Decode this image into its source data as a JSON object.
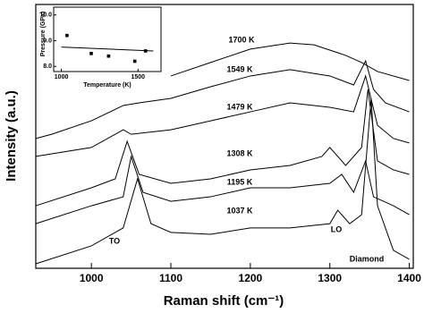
{
  "chart_data": {
    "type": "line",
    "xlabel": "Raman shift (cm⁻¹)",
    "ylabel": "Intensity (a.u.)",
    "xlim": [
      930,
      1405
    ],
    "ylim": [
      0,
      100
    ],
    "xticks": [
      1000,
      1100,
      1200,
      1300,
      1400
    ],
    "color": "#000000",
    "series": [
      {
        "name": "1700 K",
        "x": [
          1100,
          1150,
          1200,
          1250,
          1280,
          1320,
          1340,
          1360,
          1400
        ],
        "y": [
          72.9,
          78.0,
          83.1,
          85.4,
          84.7,
          80.7,
          78.0,
          74.6,
          71.2
        ]
      },
      {
        "name": "1549 K",
        "x": [
          930,
          950,
          1000,
          1040,
          1060,
          1100,
          1150,
          1200,
          1250,
          1300,
          1330,
          1345,
          1355,
          1370,
          1400
        ],
        "y": [
          49.2,
          50.8,
          55.9,
          61.7,
          62.7,
          64.4,
          68.8,
          72.9,
          75.3,
          72.9,
          69.5,
          78.6,
          67.8,
          62.7,
          59.3
        ]
      },
      {
        "name": "1479 K",
        "x": [
          930,
          1000,
          1030,
          1040,
          1050,
          1100,
          1150,
          1200,
          1250,
          1300,
          1330,
          1345,
          1360,
          1380,
          1400
        ],
        "y": [
          42.4,
          45.8,
          50.8,
          52.5,
          50.8,
          52.5,
          55.9,
          59.3,
          62.7,
          61.0,
          59.3,
          72.9,
          54.2,
          49.2,
          47.5
        ]
      },
      {
        "name": "1308 K",
        "x": [
          930,
          1000,
          1030,
          1045,
          1060,
          1100,
          1150,
          1200,
          1250,
          1290,
          1300,
          1320,
          1340,
          1348,
          1360,
          1380,
          1400
        ],
        "y": [
          23.7,
          30.5,
          33.9,
          48.1,
          35.6,
          32.2,
          33.9,
          37.3,
          39.0,
          42.4,
          45.8,
          39.0,
          45.8,
          67.8,
          40.7,
          37.3,
          35.6
        ]
      },
      {
        "name": "1195 K",
        "x": [
          930,
          1000,
          1040,
          1050,
          1065,
          1100,
          1150,
          1200,
          1250,
          1300,
          1315,
          1330,
          1345,
          1355,
          1380,
          1400
        ],
        "y": [
          16.9,
          23.7,
          27.1,
          42.4,
          28.8,
          25.4,
          27.1,
          30.5,
          30.5,
          32.2,
          35.6,
          28.8,
          40.7,
          27.1,
          23.7,
          20.3
        ]
      },
      {
        "name": "1037 K",
        "x": [
          930,
          1000,
          1040,
          1058,
          1075,
          1100,
          1150,
          1200,
          1250,
          1300,
          1310,
          1325,
          1340,
          1352,
          1360,
          1380,
          1400
        ],
        "y": [
          1.7,
          8.5,
          15.3,
          33.9,
          16.9,
          13.6,
          12.9,
          15.3,
          15.3,
          16.9,
          22.0,
          16.9,
          20.3,
          64.4,
          23.7,
          6.8,
          3.4
        ]
      }
    ],
    "annotations": [
      "TO",
      "LO",
      "Diamond"
    ],
    "inset": {
      "type": "scatter",
      "xlabel": "Temperature (K)",
      "ylabel": "Pressure (GPa)",
      "xlim": [
        950,
        1650
      ],
      "ylim": [
        7.8,
        10.3
      ],
      "xticks": [
        1000,
        1500
      ],
      "yticks": [
        {
          "value": 8,
          "label": "8.0"
        },
        {
          "value": 9,
          "label": "9.0"
        },
        {
          "value": 10,
          "label": "10.0"
        }
      ],
      "x": [
        1037,
        1195,
        1308,
        1479,
        1549
      ],
      "y": [
        9.2,
        8.5,
        8.4,
        8.2,
        8.6
      ],
      "fit": {
        "x": [
          1000,
          1600
        ],
        "y": [
          8.75,
          8.6
        ]
      }
    }
  }
}
